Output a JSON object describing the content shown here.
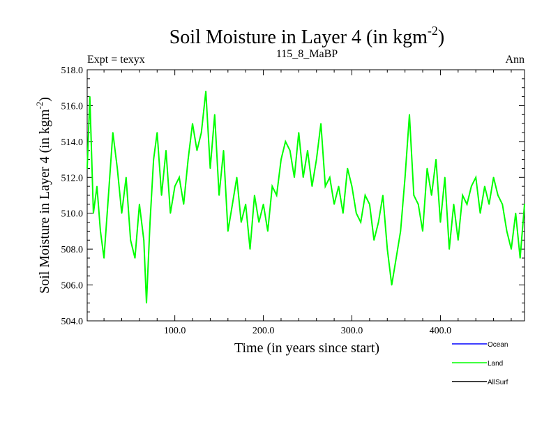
{
  "chart_data": {
    "type": "line",
    "title": "Soil Moisture in Layer 4 (in kgm",
    "title_sup": "-2",
    "title_end": ")",
    "subtitle_left": "Expt = texyx",
    "subtitle_center": "115_8_MaBP",
    "subtitle_right": "Ann",
    "xlabel": "Time (in years since start)",
    "ylabel": "Soil Moisture in Layer 4 (in kgm",
    "ylabel_sup": "-2",
    "ylabel_end": ")",
    "xlim": [
      1,
      495
    ],
    "ylim": [
      504.0,
      518.0
    ],
    "xticks": [
      100,
      200,
      300,
      400
    ],
    "xtick_labels": [
      "100.0",
      "200.0",
      "300.0",
      "400.0"
    ],
    "yticks": [
      504,
      506,
      508,
      510,
      512,
      514,
      516,
      518
    ],
    "ytick_labels": [
      "504.0",
      "506.0",
      "508.0",
      "510.0",
      "512.0",
      "514.0",
      "516.0",
      "518.0"
    ],
    "grid": false,
    "legend_position": "bottom-right",
    "legend": [
      {
        "name": "Ocean",
        "color": "#0000ff"
      },
      {
        "name": "Land",
        "color": "#00ff00"
      },
      {
        "name": "AllSurf",
        "color": "#000000"
      }
    ],
    "series": [
      {
        "name": "Land",
        "color": "#00ff00",
        "x": [
          1,
          4,
          8,
          12,
          16,
          20,
          25,
          30,
          35,
          40,
          45,
          50,
          55,
          60,
          65,
          68,
          72,
          76,
          80,
          85,
          90,
          95,
          100,
          105,
          110,
          115,
          120,
          125,
          130,
          135,
          140,
          145,
          150,
          155,
          160,
          165,
          170,
          175,
          180,
          185,
          190,
          195,
          200,
          205,
          210,
          215,
          220,
          225,
          230,
          235,
          240,
          245,
          250,
          255,
          260,
          265,
          270,
          275,
          280,
          285,
          290,
          295,
          300,
          305,
          310,
          315,
          320,
          325,
          330,
          335,
          340,
          345,
          350,
          355,
          360,
          365,
          370,
          375,
          380,
          385,
          390,
          395,
          400,
          405,
          410,
          415,
          420,
          425,
          430,
          435,
          440,
          445,
          450,
          455,
          460,
          465,
          470,
          475,
          480,
          485,
          490,
          495
        ],
        "y": [
          512.5,
          516.5,
          510.0,
          511.5,
          509.0,
          507.5,
          511.0,
          514.5,
          512.5,
          510.0,
          512.0,
          508.5,
          507.5,
          510.5,
          508.5,
          505.0,
          509.5,
          513.0,
          514.5,
          511.0,
          513.5,
          510.0,
          511.5,
          512.0,
          510.5,
          513.0,
          515.0,
          513.5,
          514.5,
          516.8,
          512.5,
          515.5,
          511.0,
          513.5,
          509.0,
          510.5,
          512.0,
          509.5,
          510.5,
          508.0,
          511.0,
          509.5,
          510.5,
          509.0,
          511.5,
          511.0,
          513.0,
          514.0,
          513.5,
          512.0,
          514.5,
          512.0,
          513.5,
          511.5,
          513.0,
          515.0,
          511.5,
          512.0,
          510.5,
          511.5,
          510.0,
          512.5,
          511.5,
          510.0,
          509.5,
          511.0,
          510.5,
          508.5,
          509.5,
          511.0,
          508.0,
          506.0,
          507.5,
          509.0,
          512.0,
          515.5,
          511.0,
          510.5,
          509.0,
          512.5,
          511.0,
          513.0,
          509.5,
          512.0,
          508.0,
          510.5,
          508.5,
          511.0,
          510.5,
          511.5,
          512.0,
          510.0,
          511.5,
          510.5,
          512.0,
          511.0,
          510.5,
          509.0,
          508.0,
          510.0,
          507.5,
          510.5
        ]
      }
    ]
  }
}
